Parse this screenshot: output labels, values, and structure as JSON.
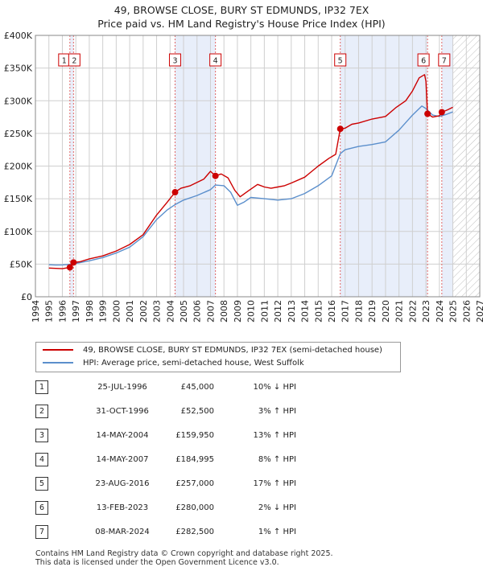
{
  "title": {
    "line1": "49, BROWSE CLOSE, BURY ST EDMUNDS, IP32 7EX",
    "line2": "Price paid vs. HM Land Registry's House Price Index (HPI)"
  },
  "colors": {
    "property": "#cc0000",
    "hpi": "#5b8fcc",
    "shade": "#e8eefa",
    "marker_line": "#e06666",
    "grid": "#cfcfcf"
  },
  "legend": {
    "property_label": "49, BROWSE CLOSE, BURY ST EDMUNDS, IP32 7EX (semi-detached house)",
    "hpi_label": "HPI: Average price, semi-detached house, West Suffolk"
  },
  "transactions": [
    {
      "num": "1",
      "date": "25-JUL-1996",
      "price": "£45,000",
      "hpi": "10% ↓ HPI"
    },
    {
      "num": "2",
      "date": "31-OCT-1996",
      "price": "£52,500",
      "hpi": "3% ↑ HPI"
    },
    {
      "num": "3",
      "date": "14-MAY-2004",
      "price": "£159,950",
      "hpi": "13% ↑ HPI"
    },
    {
      "num": "4",
      "date": "14-MAY-2007",
      "price": "£184,995",
      "hpi": "8% ↑ HPI"
    },
    {
      "num": "5",
      "date": "23-AUG-2016",
      "price": "£257,000",
      "hpi": "17% ↑ HPI"
    },
    {
      "num": "6",
      "date": "13-FEB-2023",
      "price": "£280,000",
      "hpi": "2% ↓ HPI"
    },
    {
      "num": "7",
      "date": "08-MAR-2024",
      "price": "£282,500",
      "hpi": "1% ↑ HPI"
    }
  ],
  "footer": {
    "line1": "Contains HM Land Registry data © Crown copyright and database right 2025.",
    "line2": "This data is licensed under the Open Government Licence v3.0."
  },
  "chart_data": {
    "type": "line",
    "xlim": [
      1994,
      2027
    ],
    "ylim": [
      0,
      400000
    ],
    "x_ticks": [
      1994,
      1995,
      1996,
      1997,
      1998,
      1999,
      2000,
      2001,
      2002,
      2003,
      2004,
      2005,
      2006,
      2007,
      2008,
      2009,
      2010,
      2011,
      2012,
      2013,
      2014,
      2015,
      2016,
      2017,
      2018,
      2019,
      2020,
      2021,
      2022,
      2023,
      2024,
      2025,
      2026,
      2027
    ],
    "y_ticks": [
      {
        "value": 0,
        "label": "£0"
      },
      {
        "value": 50000,
        "label": "£50K"
      },
      {
        "value": 100000,
        "label": "£100K"
      },
      {
        "value": 150000,
        "label": "£150K"
      },
      {
        "value": 200000,
        "label": "£200K"
      },
      {
        "value": 250000,
        "label": "£250K"
      },
      {
        "value": 300000,
        "label": "£300K"
      },
      {
        "value": 350000,
        "label": "£350K"
      },
      {
        "value": 400000,
        "label": "£400K"
      }
    ],
    "grid": true,
    "hatched_future_from": 2025.0,
    "shaded_ranges": [
      [
        1996.56,
        1996.83
      ],
      [
        2004.37,
        2007.37
      ],
      [
        2016.64,
        2023.12
      ],
      [
        2024.18,
        2025.0
      ]
    ],
    "sales": [
      {
        "label": "1",
        "x": 1996.56,
        "y": 45000
      },
      {
        "label": "2",
        "x": 1996.83,
        "y": 52500
      },
      {
        "label": "3",
        "x": 2004.37,
        "y": 159950
      },
      {
        "label": "4",
        "x": 2007.37,
        "y": 184995
      },
      {
        "label": "5",
        "x": 2016.64,
        "y": 257000
      },
      {
        "label": "6",
        "x": 2023.12,
        "y": 280000
      },
      {
        "label": "7",
        "x": 2024.18,
        "y": 282500
      }
    ],
    "series": [
      {
        "name": "49, BROWSE CLOSE, BURY ST EDMUNDS, IP32 7EX (semi-detached house)",
        "points": [
          [
            1995.0,
            44000
          ],
          [
            1995.5,
            43500
          ],
          [
            1996.0,
            43000
          ],
          [
            1996.56,
            45000
          ],
          [
            1996.6,
            44000
          ],
          [
            1996.83,
            52500
          ],
          [
            1997.3,
            53500
          ],
          [
            1998.0,
            58000
          ],
          [
            1999.0,
            62500
          ],
          [
            2000.0,
            70000
          ],
          [
            2001.0,
            80000
          ],
          [
            2002.0,
            95000
          ],
          [
            2003.0,
            125000
          ],
          [
            2003.8,
            145000
          ],
          [
            2004.37,
            159950
          ],
          [
            2004.8,
            166000
          ],
          [
            2005.5,
            170000
          ],
          [
            2006.5,
            180000
          ],
          [
            2007.0,
            192000
          ],
          [
            2007.37,
            184995
          ],
          [
            2007.8,
            188000
          ],
          [
            2008.3,
            182000
          ],
          [
            2008.8,
            163000
          ],
          [
            2009.2,
            153000
          ],
          [
            2009.8,
            162000
          ],
          [
            2010.5,
            172000
          ],
          [
            2011.0,
            168000
          ],
          [
            2011.5,
            166000
          ],
          [
            2012.0,
            168000
          ],
          [
            2012.5,
            170000
          ],
          [
            2013.0,
            174000
          ],
          [
            2014.0,
            183000
          ],
          [
            2015.0,
            200000
          ],
          [
            2015.8,
            212000
          ],
          [
            2016.3,
            218000
          ],
          [
            2016.64,
            257000
          ],
          [
            2017.0,
            258000
          ],
          [
            2017.5,
            264000
          ],
          [
            2018.0,
            266000
          ],
          [
            2019.0,
            272000
          ],
          [
            2020.0,
            276000
          ],
          [
            2020.8,
            290000
          ],
          [
            2021.5,
            300000
          ],
          [
            2022.0,
            315000
          ],
          [
            2022.5,
            335000
          ],
          [
            2022.9,
            340000
          ],
          [
            2023.0,
            330000
          ],
          [
            2023.12,
            280000
          ],
          [
            2023.5,
            275000
          ],
          [
            2024.0,
            277000
          ],
          [
            2024.18,
            282500
          ],
          [
            2024.6,
            286000
          ],
          [
            2025.0,
            290000
          ]
        ]
      },
      {
        "name": "HPI: Average price, semi-detached house, West Suffolk",
        "points": [
          [
            1995.0,
            49000
          ],
          [
            1995.5,
            48500
          ],
          [
            1996.0,
            48800
          ],
          [
            1996.5,
            49500
          ],
          [
            1997.0,
            51000
          ],
          [
            1998.0,
            55000
          ],
          [
            1999.0,
            60000
          ],
          [
            2000.0,
            67000
          ],
          [
            2001.0,
            76000
          ],
          [
            2002.0,
            92000
          ],
          [
            2003.0,
            118000
          ],
          [
            2003.8,
            133000
          ],
          [
            2004.37,
            141000
          ],
          [
            2005.0,
            148000
          ],
          [
            2006.0,
            155000
          ],
          [
            2007.0,
            164000
          ],
          [
            2007.37,
            171000
          ],
          [
            2008.0,
            170000
          ],
          [
            2008.5,
            160000
          ],
          [
            2009.0,
            140000
          ],
          [
            2009.5,
            145000
          ],
          [
            2010.0,
            152000
          ],
          [
            2011.0,
            150000
          ],
          [
            2012.0,
            148000
          ],
          [
            2013.0,
            150000
          ],
          [
            2014.0,
            158000
          ],
          [
            2015.0,
            170000
          ],
          [
            2016.0,
            185000
          ],
          [
            2016.64,
            219000
          ],
          [
            2017.0,
            225000
          ],
          [
            2018.0,
            230000
          ],
          [
            2019.0,
            233000
          ],
          [
            2020.0,
            237000
          ],
          [
            2021.0,
            255000
          ],
          [
            2022.0,
            278000
          ],
          [
            2022.7,
            292000
          ],
          [
            2023.0,
            288000
          ],
          [
            2023.5,
            278000
          ],
          [
            2024.0,
            276000
          ],
          [
            2024.5,
            279000
          ],
          [
            2025.0,
            283000
          ]
        ]
      }
    ]
  }
}
